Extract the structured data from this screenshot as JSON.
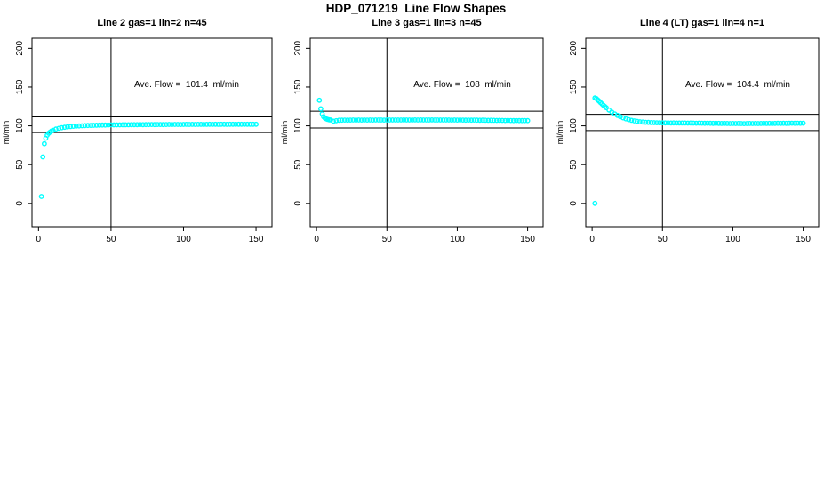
{
  "figure_title": "HDP_071219  Line Flow Shapes",
  "colors": {
    "points": "#00ffff",
    "axis": "#000000",
    "background": "#ffffff",
    "text": "#000000"
  },
  "chart_data": [
    {
      "type": "scatter",
      "title": "Line 2 gas=1 lin=2 n=45",
      "annotation": "Ave. Flow =  101.4  ml/min",
      "ave_flow": 101.4,
      "ylabel": "ml/min",
      "xticks": [
        0,
        50,
        100,
        150
      ],
      "yticks": [
        0,
        50,
        100,
        150,
        200
      ],
      "xlim": [
        -4.5,
        161
      ],
      "ylim": [
        -30,
        213
      ],
      "vline_x": 50,
      "hlines": [
        91.3,
        111.5
      ],
      "grid": false,
      "points": [
        [
          2,
          9
        ],
        [
          3,
          60
        ],
        [
          4,
          77
        ],
        [
          5,
          84
        ],
        [
          6,
          88
        ],
        [
          7,
          90.5
        ],
        [
          8,
          92
        ],
        [
          9,
          93.3
        ],
        [
          10,
          94.3
        ],
        [
          12,
          95.8
        ],
        [
          14,
          96.8
        ],
        [
          16,
          97.6
        ],
        [
          18,
          98.2
        ],
        [
          20,
          98.7
        ],
        [
          22,
          99.1
        ],
        [
          24,
          99.4
        ],
        [
          26,
          99.7
        ],
        [
          28,
          99.9
        ],
        [
          30,
          100.1
        ],
        [
          32,
          100.3
        ],
        [
          34,
          100.4
        ],
        [
          36,
          100.6
        ],
        [
          38,
          100.7
        ],
        [
          40,
          100.8
        ],
        [
          42,
          100.9
        ],
        [
          44,
          101
        ],
        [
          46,
          101
        ],
        [
          48,
          101.1
        ],
        [
          50,
          101.2
        ],
        [
          52,
          101.2
        ],
        [
          54,
          101.3
        ],
        [
          56,
          101.3
        ],
        [
          58,
          101.4
        ],
        [
          60,
          101.4
        ],
        [
          62,
          101.4
        ],
        [
          64,
          101.5
        ],
        [
          66,
          101.5
        ],
        [
          68,
          101.5
        ],
        [
          70,
          101.6
        ],
        [
          72,
          101.5
        ],
        [
          74,
          101.6
        ],
        [
          76,
          101.6
        ],
        [
          78,
          101.7
        ],
        [
          80,
          101.6
        ],
        [
          82,
          101.7
        ],
        [
          84,
          101.7
        ],
        [
          86,
          101.6
        ],
        [
          88,
          101.7
        ],
        [
          90,
          101.8
        ],
        [
          92,
          101.7
        ],
        [
          94,
          101.8
        ],
        [
          96,
          101.8
        ],
        [
          98,
          101.7
        ],
        [
          100,
          101.8
        ],
        [
          102,
          101.9
        ],
        [
          104,
          101.8
        ],
        [
          106,
          101.9
        ],
        [
          108,
          101.8
        ],
        [
          110,
          101.9
        ],
        [
          112,
          101.9
        ],
        [
          114,
          101.8
        ],
        [
          116,
          101.9
        ],
        [
          118,
          102
        ],
        [
          120,
          101.9
        ],
        [
          122,
          102
        ],
        [
          124,
          101.9
        ],
        [
          126,
          102
        ],
        [
          128,
          102
        ],
        [
          130,
          101.9
        ],
        [
          132,
          102
        ],
        [
          134,
          102.1
        ],
        [
          136,
          102
        ],
        [
          138,
          102.1
        ],
        [
          140,
          102
        ],
        [
          142,
          102.1
        ],
        [
          144,
          102.1
        ],
        [
          146,
          102
        ],
        [
          148,
          102.1
        ],
        [
          150,
          102.1
        ]
      ]
    },
    {
      "type": "scatter",
      "title": "Line 3 gas=1 lin=3 n=45",
      "annotation": "Ave. Flow =  108  ml/min",
      "ave_flow": 108,
      "ylabel": "ml/min",
      "xticks": [
        0,
        50,
        100,
        150
      ],
      "yticks": [
        0,
        50,
        100,
        150,
        200
      ],
      "xlim": [
        -4.5,
        161
      ],
      "ylim": [
        -30,
        213
      ],
      "vline_x": 50,
      "hlines": [
        97.2,
        118.8
      ],
      "grid": false,
      "points": [
        [
          2,
          133
        ],
        [
          3,
          122
        ],
        [
          4,
          115.5
        ],
        [
          5,
          111.8
        ],
        [
          6,
          110
        ],
        [
          7,
          108.9
        ],
        [
          8,
          108.2
        ],
        [
          9,
          107.8
        ],
        [
          10,
          107.5
        ],
        [
          12,
          105.9
        ],
        [
          14,
          106.6
        ],
        [
          16,
          107.2
        ],
        [
          18,
          107.3
        ],
        [
          20,
          107.4
        ],
        [
          22,
          107.3
        ],
        [
          24,
          107.4
        ],
        [
          26,
          107.5
        ],
        [
          28,
          107.4
        ],
        [
          30,
          107.5
        ],
        [
          32,
          107.4
        ],
        [
          34,
          107.5
        ],
        [
          36,
          107.4
        ],
        [
          38,
          107.5
        ],
        [
          40,
          107.4
        ],
        [
          42,
          107.5
        ],
        [
          44,
          107.6
        ],
        [
          46,
          107.5
        ],
        [
          48,
          107.4
        ],
        [
          50,
          107.5
        ],
        [
          52,
          107.6
        ],
        [
          54,
          107.5
        ],
        [
          56,
          107.6
        ],
        [
          58,
          107.5
        ],
        [
          60,
          107.6
        ],
        [
          62,
          107.7
        ],
        [
          64,
          107.6
        ],
        [
          66,
          107.5
        ],
        [
          68,
          107.6
        ],
        [
          70,
          107.7
        ],
        [
          72,
          107.6
        ],
        [
          74,
          107.7
        ],
        [
          76,
          107.6
        ],
        [
          78,
          107.5
        ],
        [
          80,
          107.6
        ],
        [
          82,
          107.7
        ],
        [
          84,
          107.6
        ],
        [
          86,
          107.5
        ],
        [
          88,
          107.6
        ],
        [
          90,
          107.5
        ],
        [
          92,
          107.6
        ],
        [
          94,
          107.5
        ],
        [
          96,
          107.4
        ],
        [
          98,
          107.5
        ],
        [
          100,
          107.4
        ],
        [
          102,
          107.5
        ],
        [
          104,
          107.4
        ],
        [
          106,
          107.3
        ],
        [
          108,
          107.4
        ],
        [
          110,
          107.3
        ],
        [
          112,
          107.4
        ],
        [
          114,
          107.3
        ],
        [
          116,
          107.2
        ],
        [
          118,
          107.3
        ],
        [
          120,
          107.2
        ],
        [
          122,
          107.1
        ],
        [
          124,
          107.2
        ],
        [
          126,
          107.1
        ],
        [
          128,
          107
        ],
        [
          130,
          107.1
        ],
        [
          132,
          107
        ],
        [
          134,
          106.9
        ],
        [
          136,
          107
        ],
        [
          138,
          106.9
        ],
        [
          140,
          106.8
        ],
        [
          142,
          106.9
        ],
        [
          144,
          106.8
        ],
        [
          146,
          106.7
        ],
        [
          148,
          106.8
        ],
        [
          150,
          106.7
        ]
      ]
    },
    {
      "type": "scatter",
      "title": "Line 4 (LT) gas=1 lin=4 n=1",
      "annotation": "Ave. Flow =  104.4  ml/min",
      "ave_flow": 104.4,
      "ylabel": "ml/min",
      "xticks": [
        0,
        50,
        100,
        150
      ],
      "yticks": [
        0,
        50,
        100,
        150,
        200
      ],
      "xlim": [
        -4.5,
        161
      ],
      "ylim": [
        -30,
        213
      ],
      "vline_x": 50,
      "hlines": [
        94,
        114.8
      ],
      "grid": false,
      "points": [
        [
          2,
          0
        ],
        [
          2,
          136
        ],
        [
          3,
          135.2
        ],
        [
          4,
          133.5
        ],
        [
          5,
          131.8
        ],
        [
          6,
          130
        ],
        [
          7,
          128.3
        ],
        [
          8,
          126.6
        ],
        [
          9,
          125
        ],
        [
          10,
          123.4
        ],
        [
          12,
          120.4
        ],
        [
          14,
          117.8
        ],
        [
          16,
          115.5
        ],
        [
          18,
          113.5
        ],
        [
          20,
          111.8
        ],
        [
          22,
          110.3
        ],
        [
          24,
          109
        ],
        [
          26,
          108
        ],
        [
          28,
          107.1
        ],
        [
          30,
          106.4
        ],
        [
          32,
          105.8
        ],
        [
          34,
          105.3
        ],
        [
          36,
          104.9
        ],
        [
          38,
          104.6
        ],
        [
          40,
          104.4
        ],
        [
          42,
          104.2
        ],
        [
          44,
          104.1
        ],
        [
          46,
          104
        ],
        [
          48,
          103.9
        ],
        [
          50,
          103.9
        ],
        [
          52,
          103.8
        ],
        [
          54,
          103.8
        ],
        [
          56,
          103.7
        ],
        [
          58,
          103.8
        ],
        [
          60,
          103.7
        ],
        [
          62,
          103.6
        ],
        [
          64,
          103.7
        ],
        [
          66,
          103.6
        ],
        [
          68,
          103.5
        ],
        [
          70,
          103.6
        ],
        [
          72,
          103.5
        ],
        [
          74,
          103.4
        ],
        [
          76,
          103.5
        ],
        [
          78,
          103.4
        ],
        [
          80,
          103.3
        ],
        [
          82,
          103.4
        ],
        [
          84,
          103.3
        ],
        [
          86,
          103.2
        ],
        [
          88,
          103.3
        ],
        [
          90,
          103.2
        ],
        [
          92,
          103.1
        ],
        [
          94,
          103.2
        ],
        [
          96,
          103.1
        ],
        [
          98,
          103
        ],
        [
          100,
          103.1
        ],
        [
          102,
          103
        ],
        [
          104,
          103.1
        ],
        [
          106,
          103
        ],
        [
          108,
          102.9
        ],
        [
          110,
          103
        ],
        [
          112,
          103.1
        ],
        [
          114,
          103
        ],
        [
          116,
          103.1
        ],
        [
          118,
          103
        ],
        [
          120,
          103.1
        ],
        [
          122,
          103.2
        ],
        [
          124,
          103.1
        ],
        [
          126,
          103.2
        ],
        [
          128,
          103.1
        ],
        [
          130,
          103.2
        ],
        [
          132,
          103.3
        ],
        [
          134,
          103.2
        ],
        [
          136,
          103.3
        ],
        [
          138,
          103.2
        ],
        [
          140,
          103.3
        ],
        [
          142,
          103.4
        ],
        [
          144,
          103.3
        ],
        [
          146,
          103.4
        ],
        [
          148,
          103.3
        ],
        [
          150,
          103.4
        ]
      ]
    }
  ]
}
